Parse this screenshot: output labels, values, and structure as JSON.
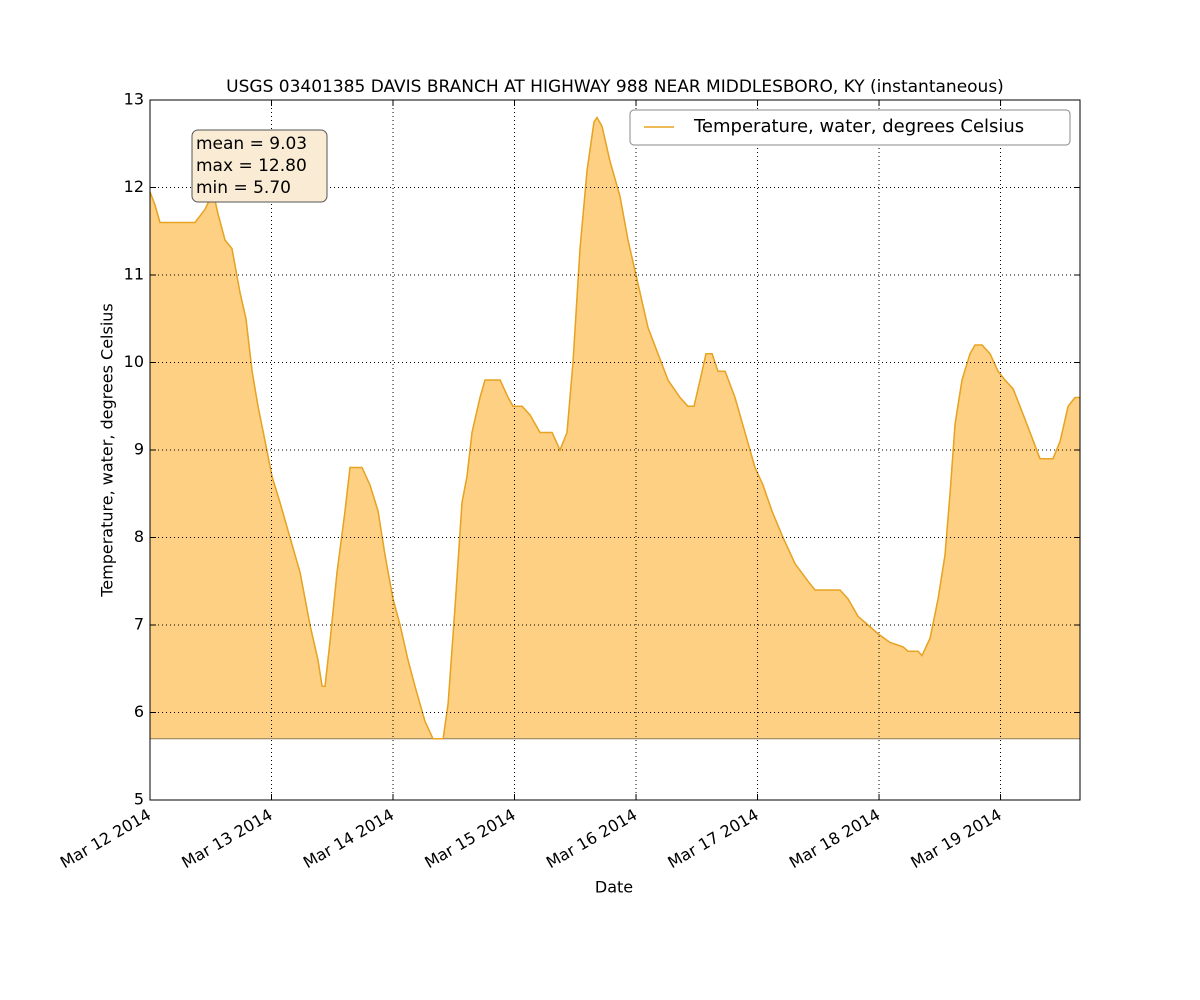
{
  "chart_data": {
    "type": "area",
    "title": "USGS 03401385 DAVIS BRANCH AT HIGHWAY 988 NEAR MIDDLESBORO, KY (instantaneous)",
    "x_label": "Date",
    "y_label": "Temperature, water, degrees Celsius",
    "annotations": [
      "mean = 9.03",
      "max = 12.80",
      "min = 5.70"
    ],
    "legend": "upper right",
    "grid": true,
    "xlim": [
      0,
      7.654
    ],
    "xticks": [
      {
        "value": 0,
        "label": "Mar 12 2014"
      },
      {
        "value": 1,
        "label": "Mar 13 2014"
      },
      {
        "value": 2,
        "label": "Mar 14 2014"
      },
      {
        "value": 3,
        "label": "Mar 15 2014"
      },
      {
        "value": 4,
        "label": "Mar 16 2014"
      },
      {
        "value": 5,
        "label": "Mar 17 2014"
      },
      {
        "value": 6,
        "label": "Mar 18 2014"
      },
      {
        "value": 7,
        "label": "Mar 19 2014"
      }
    ],
    "ylim": [
      5,
      13
    ],
    "yticks": [
      5,
      6,
      7,
      8,
      9,
      10,
      11,
      12,
      13
    ],
    "x": [
      0,
      0.041,
      0.082,
      0.37,
      0.453,
      0.519,
      0.56,
      0.617,
      0.675,
      0.741,
      0.79,
      0.84,
      0.889,
      0.947,
      1.004,
      1.07,
      1.152,
      1.235,
      1.317,
      1.383,
      1.416,
      1.44,
      1.481,
      1.539,
      1.605,
      1.646,
      1.745,
      1.811,
      1.877,
      1.934,
      2.0,
      2.058,
      2.123,
      2.181,
      2.263,
      2.329,
      2.412,
      2.453,
      2.51,
      2.568,
      2.609,
      2.65,
      2.716,
      2.757,
      2.881,
      2.947,
      2.988,
      3.062,
      3.128,
      3.21,
      3.309,
      3.374,
      3.432,
      3.481,
      3.539,
      3.597,
      3.654,
      3.679,
      3.72,
      3.786,
      3.868,
      3.934,
      4.016,
      4.099,
      4.181,
      4.263,
      4.362,
      4.428,
      4.477,
      4.527,
      4.576,
      4.626,
      4.675,
      4.733,
      4.815,
      4.897,
      4.979,
      5.045,
      5.119,
      5.21,
      5.309,
      5.416,
      5.473,
      5.679,
      5.745,
      5.827,
      5.909,
      5.992,
      6.091,
      6.198,
      6.239,
      6.321,
      6.354,
      6.42,
      6.486,
      6.543,
      6.584,
      6.626,
      6.683,
      6.749,
      6.79,
      6.848,
      6.914,
      6.979,
      7.037,
      7.103,
      7.16,
      7.243,
      7.325,
      7.432,
      7.49,
      7.556,
      7.613,
      7.654
    ],
    "series": [
      {
        "name": "Temperature, water, degrees Celsius",
        "color": "#e8a320",
        "fill": "#fdd083",
        "values": [
          11.95,
          11.8,
          11.6,
          11.6,
          11.75,
          11.95,
          11.7,
          11.4,
          11.3,
          10.8,
          10.5,
          9.9,
          9.5,
          9.1,
          8.7,
          8.4,
          8.0,
          7.6,
          7.0,
          6.6,
          6.3,
          6.3,
          6.8,
          7.6,
          8.3,
          8.8,
          8.8,
          8.6,
          8.3,
          7.8,
          7.3,
          7.0,
          6.6,
          6.3,
          5.9,
          5.7,
          5.7,
          6.1,
          7.2,
          8.4,
          8.7,
          9.2,
          9.6,
          9.8,
          9.8,
          9.6,
          9.5,
          9.5,
          9.4,
          9.2,
          9.2,
          9.0,
          9.2,
          10.0,
          11.3,
          12.2,
          12.75,
          12.8,
          12.7,
          12.3,
          11.9,
          11.4,
          10.9,
          10.4,
          10.1,
          9.8,
          9.6,
          9.5,
          9.5,
          9.8,
          10.1,
          10.1,
          9.9,
          9.9,
          9.6,
          9.2,
          8.8,
          8.6,
          8.3,
          8.0,
          7.7,
          7.5,
          7.4,
          7.4,
          7.3,
          7.1,
          7.0,
          6.9,
          6.8,
          6.75,
          6.7,
          6.7,
          6.65,
          6.85,
          7.3,
          7.8,
          8.5,
          9.3,
          9.8,
          10.1,
          10.2,
          10.2,
          10.1,
          9.9,
          9.8,
          9.7,
          9.5,
          9.2,
          8.9,
          8.9,
          9.1,
          9.5,
          9.6,
          9.6
        ]
      }
    ]
  }
}
